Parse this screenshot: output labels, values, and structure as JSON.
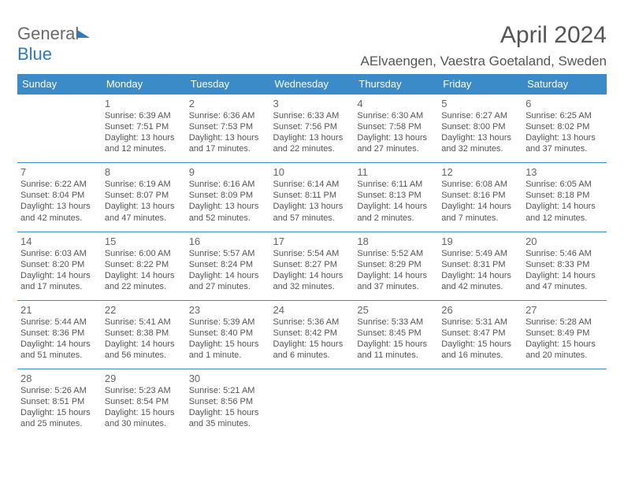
{
  "brand": {
    "part1": "General",
    "part2": "Blue"
  },
  "title": "April 2024",
  "location": "AElvaengen, Vaestra Goetaland, Sweden",
  "colors": {
    "header_bg": "#3b8bc8",
    "header_fg": "#ffffff",
    "text": "#555555",
    "rule": "#3b8bc8"
  },
  "day_headers": [
    "Sunday",
    "Monday",
    "Tuesday",
    "Wednesday",
    "Thursday",
    "Friday",
    "Saturday"
  ],
  "weeks": [
    [
      null,
      {
        "n": "1",
        "sr": "Sunrise: 6:39 AM",
        "ss": "Sunset: 7:51 PM",
        "d1": "Daylight: 13 hours",
        "d2": "and 12 minutes."
      },
      {
        "n": "2",
        "sr": "Sunrise: 6:36 AM",
        "ss": "Sunset: 7:53 PM",
        "d1": "Daylight: 13 hours",
        "d2": "and 17 minutes."
      },
      {
        "n": "3",
        "sr": "Sunrise: 6:33 AM",
        "ss": "Sunset: 7:56 PM",
        "d1": "Daylight: 13 hours",
        "d2": "and 22 minutes."
      },
      {
        "n": "4",
        "sr": "Sunrise: 6:30 AM",
        "ss": "Sunset: 7:58 PM",
        "d1": "Daylight: 13 hours",
        "d2": "and 27 minutes."
      },
      {
        "n": "5",
        "sr": "Sunrise: 6:27 AM",
        "ss": "Sunset: 8:00 PM",
        "d1": "Daylight: 13 hours",
        "d2": "and 32 minutes."
      },
      {
        "n": "6",
        "sr": "Sunrise: 6:25 AM",
        "ss": "Sunset: 8:02 PM",
        "d1": "Daylight: 13 hours",
        "d2": "and 37 minutes."
      }
    ],
    [
      {
        "n": "7",
        "sr": "Sunrise: 6:22 AM",
        "ss": "Sunset: 8:04 PM",
        "d1": "Daylight: 13 hours",
        "d2": "and 42 minutes."
      },
      {
        "n": "8",
        "sr": "Sunrise: 6:19 AM",
        "ss": "Sunset: 8:07 PM",
        "d1": "Daylight: 13 hours",
        "d2": "and 47 minutes."
      },
      {
        "n": "9",
        "sr": "Sunrise: 6:16 AM",
        "ss": "Sunset: 8:09 PM",
        "d1": "Daylight: 13 hours",
        "d2": "and 52 minutes."
      },
      {
        "n": "10",
        "sr": "Sunrise: 6:14 AM",
        "ss": "Sunset: 8:11 PM",
        "d1": "Daylight: 13 hours",
        "d2": "and 57 minutes."
      },
      {
        "n": "11",
        "sr": "Sunrise: 6:11 AM",
        "ss": "Sunset: 8:13 PM",
        "d1": "Daylight: 14 hours",
        "d2": "and 2 minutes."
      },
      {
        "n": "12",
        "sr": "Sunrise: 6:08 AM",
        "ss": "Sunset: 8:16 PM",
        "d1": "Daylight: 14 hours",
        "d2": "and 7 minutes."
      },
      {
        "n": "13",
        "sr": "Sunrise: 6:05 AM",
        "ss": "Sunset: 8:18 PM",
        "d1": "Daylight: 14 hours",
        "d2": "and 12 minutes."
      }
    ],
    [
      {
        "n": "14",
        "sr": "Sunrise: 6:03 AM",
        "ss": "Sunset: 8:20 PM",
        "d1": "Daylight: 14 hours",
        "d2": "and 17 minutes."
      },
      {
        "n": "15",
        "sr": "Sunrise: 6:00 AM",
        "ss": "Sunset: 8:22 PM",
        "d1": "Daylight: 14 hours",
        "d2": "and 22 minutes."
      },
      {
        "n": "16",
        "sr": "Sunrise: 5:57 AM",
        "ss": "Sunset: 8:24 PM",
        "d1": "Daylight: 14 hours",
        "d2": "and 27 minutes."
      },
      {
        "n": "17",
        "sr": "Sunrise: 5:54 AM",
        "ss": "Sunset: 8:27 PM",
        "d1": "Daylight: 14 hours",
        "d2": "and 32 minutes."
      },
      {
        "n": "18",
        "sr": "Sunrise: 5:52 AM",
        "ss": "Sunset: 8:29 PM",
        "d1": "Daylight: 14 hours",
        "d2": "and 37 minutes."
      },
      {
        "n": "19",
        "sr": "Sunrise: 5:49 AM",
        "ss": "Sunset: 8:31 PM",
        "d1": "Daylight: 14 hours",
        "d2": "and 42 minutes."
      },
      {
        "n": "20",
        "sr": "Sunrise: 5:46 AM",
        "ss": "Sunset: 8:33 PM",
        "d1": "Daylight: 14 hours",
        "d2": "and 47 minutes."
      }
    ],
    [
      {
        "n": "21",
        "sr": "Sunrise: 5:44 AM",
        "ss": "Sunset: 8:36 PM",
        "d1": "Daylight: 14 hours",
        "d2": "and 51 minutes."
      },
      {
        "n": "22",
        "sr": "Sunrise: 5:41 AM",
        "ss": "Sunset: 8:38 PM",
        "d1": "Daylight: 14 hours",
        "d2": "and 56 minutes."
      },
      {
        "n": "23",
        "sr": "Sunrise: 5:39 AM",
        "ss": "Sunset: 8:40 PM",
        "d1": "Daylight: 15 hours",
        "d2": "and 1 minute."
      },
      {
        "n": "24",
        "sr": "Sunrise: 5:36 AM",
        "ss": "Sunset: 8:42 PM",
        "d1": "Daylight: 15 hours",
        "d2": "and 6 minutes."
      },
      {
        "n": "25",
        "sr": "Sunrise: 5:33 AM",
        "ss": "Sunset: 8:45 PM",
        "d1": "Daylight: 15 hours",
        "d2": "and 11 minutes."
      },
      {
        "n": "26",
        "sr": "Sunrise: 5:31 AM",
        "ss": "Sunset: 8:47 PM",
        "d1": "Daylight: 15 hours",
        "d2": "and 16 minutes."
      },
      {
        "n": "27",
        "sr": "Sunrise: 5:28 AM",
        "ss": "Sunset: 8:49 PM",
        "d1": "Daylight: 15 hours",
        "d2": "and 20 minutes."
      }
    ],
    [
      {
        "n": "28",
        "sr": "Sunrise: 5:26 AM",
        "ss": "Sunset: 8:51 PM",
        "d1": "Daylight: 15 hours",
        "d2": "and 25 minutes."
      },
      {
        "n": "29",
        "sr": "Sunrise: 5:23 AM",
        "ss": "Sunset: 8:54 PM",
        "d1": "Daylight: 15 hours",
        "d2": "and 30 minutes."
      },
      {
        "n": "30",
        "sr": "Sunrise: 5:21 AM",
        "ss": "Sunset: 8:56 PM",
        "d1": "Daylight: 15 hours",
        "d2": "and 35 minutes."
      },
      null,
      null,
      null,
      null
    ]
  ]
}
